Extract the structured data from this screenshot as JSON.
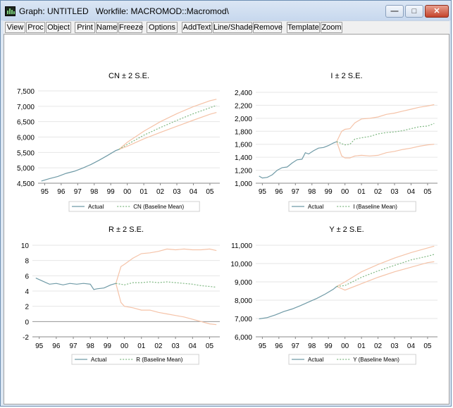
{
  "window": {
    "title": "Graph: UNTITLED   Workfile: MACROMOD::Macromod\\"
  },
  "toolbar": {
    "buttons": [
      "View",
      "Proc",
      "Object",
      "Print",
      "Name",
      "Freeze",
      "Options",
      "AddText",
      "Line/Shade",
      "Remove",
      "Template",
      "Zoom"
    ]
  },
  "colors": {
    "actual": "#6f9aa6",
    "baseline": "#7fb882",
    "bands": "#f5c3a8",
    "grid": "#e6e6e6"
  },
  "chart_data": [
    {
      "type": "line",
      "title": "CN ± 2 S.E.",
      "x_ticks": [
        "95",
        "96",
        "97",
        "98",
        "99",
        "00",
        "01",
        "02",
        "03",
        "04",
        "05"
      ],
      "ylim": [
        4500,
        7500
      ],
      "y_ticks": [
        "4,500",
        "5,000",
        "5,500",
        "6,000",
        "6,500",
        "7,000",
        "7,500"
      ],
      "y_tick_values": [
        4500,
        5000,
        5500,
        6000,
        6500,
        7000,
        7500
      ],
      "legend": [
        "Actual",
        "CN (Baseline Mean)"
      ],
      "legend_position": "bottom",
      "grid": true,
      "series": [
        {
          "name": "Actual",
          "x": [
            1994.8,
            1995.3,
            1995.8,
            1996.3,
            1996.8,
            1997.3,
            1997.8,
            1998.3,
            1998.8,
            1999.3,
            1999.5
          ],
          "values": [
            4570,
            4650,
            4720,
            4820,
            4890,
            4990,
            5110,
            5250,
            5400,
            5560,
            5600
          ]
        },
        {
          "name": "CN (Baseline Mean)",
          "x": [
            1999.5,
            2000.0,
            2001.0,
            2002.0,
            2003.0,
            2004.0,
            2005.0,
            2005.4
          ],
          "values": [
            5600,
            5760,
            6060,
            6310,
            6540,
            6760,
            6950,
            7030
          ]
        },
        {
          "name": "upper",
          "x": [
            1999.5,
            2000.0,
            2001.0,
            2002.0,
            2003.0,
            2004.0,
            2005.0,
            2005.4
          ],
          "values": [
            5600,
            5830,
            6190,
            6500,
            6760,
            6990,
            7180,
            7230
          ]
        },
        {
          "name": "lower",
          "x": [
            1999.5,
            2000.0,
            2001.0,
            2002.0,
            2003.0,
            2004.0,
            2005.0,
            2005.4
          ],
          "values": [
            5600,
            5700,
            5940,
            6150,
            6350,
            6550,
            6740,
            6800
          ]
        }
      ]
    },
    {
      "type": "line",
      "title": "I ± 2 S.E.",
      "x_ticks": [
        "95",
        "96",
        "97",
        "98",
        "99",
        "00",
        "01",
        "02",
        "03",
        "04",
        "05"
      ],
      "ylim": [
        1000,
        2400
      ],
      "y_ticks": [
        "1,000",
        "1,200",
        "1,400",
        "1,600",
        "1,800",
        "2,000",
        "2,200",
        "2,400"
      ],
      "y_tick_values": [
        1000,
        1200,
        1400,
        1600,
        1800,
        2000,
        2200,
        2400
      ],
      "legend": [
        "Actual",
        "I (Baseline Mean)"
      ],
      "legend_position": "bottom",
      "grid": true,
      "series": [
        {
          "name": "Actual",
          "x": [
            1994.8,
            1995.0,
            1995.3,
            1995.6,
            1995.9,
            1996.2,
            1996.5,
            1996.8,
            1997.1,
            1997.4,
            1997.6,
            1997.8,
            1998.1,
            1998.4,
            1998.7,
            1999.0,
            1999.3,
            1999.5
          ],
          "values": [
            1110,
            1080,
            1090,
            1130,
            1200,
            1240,
            1250,
            1310,
            1360,
            1370,
            1470,
            1450,
            1500,
            1540,
            1550,
            1580,
            1620,
            1640
          ]
        },
        {
          "name": "I (Baseline Mean)",
          "x": [
            1999.5,
            1999.8,
            2000.0,
            2000.3,
            2000.6,
            2001.0,
            2001.5,
            2002.0,
            2002.5,
            2003.0,
            2003.5,
            2004.0,
            2004.5,
            2005.0,
            2005.4
          ],
          "values": [
            1640,
            1610,
            1590,
            1600,
            1680,
            1700,
            1720,
            1760,
            1780,
            1790,
            1810,
            1840,
            1870,
            1880,
            1920
          ]
        },
        {
          "name": "upper",
          "x": [
            1999.5,
            1999.8,
            2000.0,
            2000.3,
            2000.6,
            2001.0,
            2001.5,
            2002.0,
            2002.5,
            2003.0,
            2003.5,
            2004.0,
            2004.5,
            2005.0,
            2005.4
          ],
          "values": [
            1640,
            1800,
            1830,
            1840,
            1930,
            1990,
            2000,
            2020,
            2060,
            2080,
            2110,
            2140,
            2170,
            2190,
            2210
          ]
        },
        {
          "name": "lower",
          "x": [
            1999.5,
            1999.8,
            2000.0,
            2000.3,
            2000.6,
            2001.0,
            2001.5,
            2002.0,
            2002.5,
            2003.0,
            2003.5,
            2004.0,
            2004.5,
            2005.0,
            2005.4
          ],
          "values": [
            1640,
            1420,
            1390,
            1390,
            1420,
            1430,
            1420,
            1430,
            1470,
            1490,
            1520,
            1540,
            1570,
            1590,
            1600
          ]
        }
      ]
    },
    {
      "type": "line",
      "title": "R ± 2 S.E.",
      "x_ticks": [
        "95",
        "96",
        "97",
        "98",
        "99",
        "00",
        "01",
        "02",
        "03",
        "04",
        "05"
      ],
      "ylim": [
        -2,
        10
      ],
      "y_ticks": [
        "-2",
        "0",
        "2",
        "4",
        "6",
        "8",
        "10"
      ],
      "y_tick_values": [
        -2,
        0,
        2,
        4,
        6,
        8,
        10
      ],
      "legend": [
        "Actual",
        "R (Baseline Mean)"
      ],
      "legend_position": "bottom",
      "grid": true,
      "series": [
        {
          "name": "Actual",
          "x": [
            1994.8,
            1995.2,
            1995.6,
            1996.0,
            1996.4,
            1996.8,
            1997.2,
            1997.6,
            1998.0,
            1998.2,
            1998.4,
            1998.8,
            1999.2,
            1999.5
          ],
          "values": [
            5.7,
            5.3,
            4.9,
            5.0,
            4.8,
            5.0,
            4.9,
            5.0,
            4.9,
            4.2,
            4.3,
            4.4,
            4.8,
            5.0
          ]
        },
        {
          "name": "R (Baseline Mean)",
          "x": [
            1999.5,
            1999.8,
            2000.0,
            2000.5,
            2001.0,
            2001.5,
            2002.0,
            2002.5,
            2003.0,
            2003.5,
            2004.0,
            2004.5,
            2005.0,
            2005.4
          ],
          "values": [
            5.0,
            4.9,
            4.8,
            5.1,
            5.1,
            5.2,
            5.1,
            5.2,
            5.1,
            5.0,
            4.9,
            4.7,
            4.6,
            4.5
          ]
        },
        {
          "name": "upper",
          "x": [
            1999.5,
            1999.8,
            2000.0,
            2000.5,
            2001.0,
            2001.5,
            2002.0,
            2002.5,
            2003.0,
            2003.5,
            2004.0,
            2004.5,
            2005.0,
            2005.4
          ],
          "values": [
            5.0,
            7.2,
            7.5,
            8.3,
            8.9,
            9.0,
            9.2,
            9.5,
            9.4,
            9.5,
            9.4,
            9.4,
            9.5,
            9.3
          ]
        },
        {
          "name": "lower",
          "x": [
            1999.5,
            1999.8,
            2000.0,
            2000.5,
            2001.0,
            2001.5,
            2002.0,
            2002.5,
            2003.0,
            2003.5,
            2004.0,
            2004.5,
            2005.0,
            2005.4
          ],
          "values": [
            5.0,
            2.5,
            2.0,
            1.8,
            1.5,
            1.5,
            1.2,
            1.0,
            0.8,
            0.6,
            0.3,
            0.0,
            -0.3,
            -0.4
          ]
        }
      ]
    },
    {
      "type": "line",
      "title": "Y ± 2 S.E.",
      "x_ticks": [
        "95",
        "96",
        "97",
        "98",
        "99",
        "00",
        "01",
        "02",
        "03",
        "04",
        "05"
      ],
      "ylim": [
        6000,
        11000
      ],
      "y_ticks": [
        "6,000",
        "7,000",
        "8,000",
        "9,000",
        "10,000",
        "11,000"
      ],
      "y_tick_values": [
        6000,
        7000,
        8000,
        9000,
        10000,
        11000
      ],
      "legend": [
        "Actual",
        "Y (Baseline Mean)"
      ],
      "legend_position": "bottom",
      "grid": true,
      "series": [
        {
          "name": "Actual",
          "x": [
            1994.8,
            1995.3,
            1995.8,
            1996.3,
            1996.8,
            1997.3,
            1997.8,
            1998.3,
            1998.8,
            1999.3,
            1999.5
          ],
          "values": [
            6980,
            7050,
            7200,
            7380,
            7520,
            7700,
            7900,
            8100,
            8330,
            8600,
            8750
          ]
        },
        {
          "name": "Y (Baseline Mean)",
          "x": [
            1999.5,
            2000.0,
            2001.0,
            2002.0,
            2003.0,
            2004.0,
            2005.0,
            2005.4
          ],
          "values": [
            8750,
            8800,
            9250,
            9600,
            9900,
            10200,
            10400,
            10500
          ]
        },
        {
          "name": "upper",
          "x": [
            1999.5,
            2000.0,
            2001.0,
            2002.0,
            2003.0,
            2004.0,
            2005.0,
            2005.4
          ],
          "values": [
            8750,
            9000,
            9550,
            9950,
            10300,
            10600,
            10850,
            10950
          ]
        },
        {
          "name": "lower",
          "x": [
            1999.5,
            2000.0,
            2001.0,
            2002.0,
            2003.0,
            2004.0,
            2005.0,
            2005.4
          ],
          "values": [
            8750,
            8550,
            8900,
            9250,
            9550,
            9800,
            10050,
            10100
          ]
        }
      ]
    }
  ]
}
